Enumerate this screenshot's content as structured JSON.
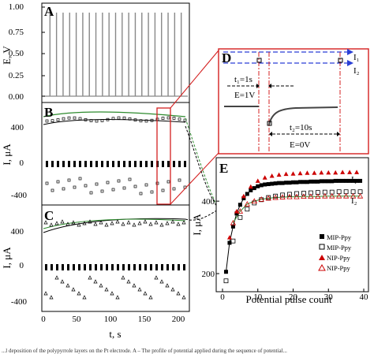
{
  "panels": {
    "A": {
      "letter": "A",
      "ylabel": "E, V",
      "yticks": [
        "1.00",
        "0.75",
        "0.50",
        "0.25",
        "0.00"
      ]
    },
    "B": {
      "letter": "B",
      "ylabel": "I, μA",
      "yticks": [
        "400",
        "0",
        "-400"
      ]
    },
    "C": {
      "letter": "C",
      "ylabel": "I, μA",
      "yticks": [
        "400",
        "0",
        "-400"
      ]
    },
    "bottom_x": {
      "label": "t, s",
      "ticks": [
        "0",
        "50",
        "100",
        "150",
        "200"
      ]
    },
    "D": {
      "letter": "D",
      "i1": "I₁",
      "i2": "I₂",
      "t1": "t₁=1s",
      "e1": "E=1V",
      "t2": "t₂=10s",
      "e0": "E=0V"
    },
    "E": {
      "letter": "E",
      "ylabel": "I, μA",
      "yticks": [
        "200",
        "400"
      ],
      "xticks": [
        "0",
        "10",
        "20",
        "30",
        "40"
      ],
      "xlabel": "Potential pulse count",
      "i1": "I₁",
      "i2": "I₂"
    }
  },
  "legend": [
    "MIP-Ppy",
    "MIP-Ppy",
    "NIP-Ppy",
    "NIP-Ppy"
  ],
  "caption": "...l deposition of the polypyrrole layers on the Pt electrode. A – The profile of potential applied during the sequence of potential...",
  "chart_data": [
    {
      "type": "line",
      "panel": "A",
      "x_range": [
        0,
        220
      ],
      "ylim": [
        0,
        1
      ],
      "pulse_count": 22,
      "pulse_period_s": 10,
      "pulse_duration_s": 1,
      "pulse_high_V": 1,
      "pulse_low_V": 0
    },
    {
      "type": "scatter",
      "panel": "E",
      "xlabel": "Potential pulse count",
      "ylabel": "I, μA",
      "xlim": [
        0,
        40
      ],
      "ylim": [
        150,
        520
      ],
      "series": [
        {
          "name": "MIP-Ppy",
          "marker": "filled-square",
          "color": "#000000",
          "x": [
            1,
            2,
            3,
            4,
            5,
            6,
            7,
            8,
            9,
            10,
            11,
            12,
            13,
            14,
            15,
            16,
            17,
            18,
            19,
            20,
            21,
            22,
            23,
            24,
            25,
            26,
            27,
            28,
            29,
            30,
            31,
            32,
            33,
            34,
            35,
            36,
            37,
            38,
            39
          ],
          "y": [
            205,
            285,
            330,
            366,
            390,
            408,
            420,
            430,
            436,
            441,
            444,
            446,
            447,
            448,
            449,
            450,
            450,
            451,
            451,
            452,
            452,
            453,
            453,
            453,
            454,
            454,
            454,
            455,
            455,
            455,
            455,
            456,
            456,
            456,
            456,
            456,
            456,
            456,
            456
          ]
        },
        {
          "name": "MIP-Ppy",
          "marker": "open-square",
          "color": "#000000",
          "x": [
            1,
            3,
            5,
            7,
            9,
            11,
            13,
            15,
            17,
            19,
            21,
            23,
            25,
            27,
            29,
            31,
            33,
            35,
            37,
            39
          ],
          "y": [
            180,
            290,
            355,
            378,
            395,
            404,
            410,
            414,
            417,
            419,
            421,
            422,
            423,
            424,
            425,
            425,
            426,
            426,
            426,
            426
          ]
        },
        {
          "name": "NIP-Ppy",
          "marker": "filled-triangle",
          "color": "#cc0000",
          "x": [
            2,
            4,
            6,
            8,
            10,
            12,
            14,
            16,
            18,
            20,
            22,
            24,
            26,
            28,
            30,
            32,
            34,
            36,
            38
          ],
          "y": [
            300,
            372,
            414,
            440,
            456,
            465,
            470,
            473,
            475,
            476,
            477,
            478,
            478,
            479,
            479,
            479,
            480,
            480,
            480
          ]
        },
        {
          "name": "NIP-Ppy",
          "marker": "open-triangle",
          "color": "#cc0000",
          "x": [
            3,
            5,
            7,
            9,
            11,
            13,
            15,
            17,
            19,
            21,
            23,
            25,
            27,
            29,
            31,
            33,
            35,
            37,
            39
          ],
          "y": [
            340,
            372,
            392,
            400,
            405,
            408,
            410,
            411,
            412,
            412,
            413,
            413,
            413,
            414,
            414,
            414,
            414,
            414,
            414
          ]
        }
      ]
    }
  ]
}
